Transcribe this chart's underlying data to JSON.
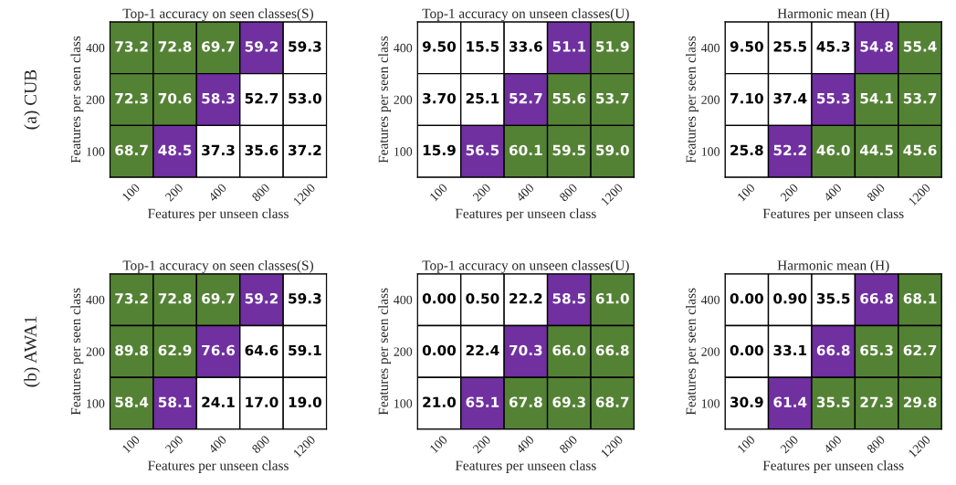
{
  "chart_data": [
    {
      "type": "heatmap",
      "data_labels": true,
      "title": "Top-1 accuracy on seen classes(S)",
      "xlabel": "Features per unseen class",
      "ylabel": "Features per seen class",
      "annotations": [
        "(a) CUB"
      ],
      "categories": [
        "100",
        "200",
        "400",
        "800",
        "1200"
      ],
      "y_categories": [
        "400",
        "200",
        "100"
      ],
      "cells": [
        [
          73.2,
          72.8,
          69.7,
          59.2,
          59.3
        ],
        [
          72.3,
          70.6,
          58.3,
          52.7,
          53.0
        ],
        [
          68.7,
          48.5,
          37.3,
          35.6,
          37.2
        ]
      ],
      "cell_labels": [
        [
          "73.2",
          "72.8",
          "69.7",
          "59.2",
          "59.3"
        ],
        [
          "72.3",
          "70.6",
          "58.3",
          "52.7",
          "53.0"
        ],
        [
          "68.7",
          "48.5",
          "37.3",
          "35.6",
          "37.2"
        ]
      ],
      "colors": [
        [
          "#548235",
          "#548235",
          "#548235",
          "#7030a0",
          "#ffffff"
        ],
        [
          "#548235",
          "#548235",
          "#7030a0",
          "#ffffff",
          "#ffffff"
        ],
        [
          "#548235",
          "#7030a0",
          "#ffffff",
          "#ffffff",
          "#ffffff"
        ]
      ]
    },
    {
      "type": "heatmap",
      "data_labels": true,
      "title": "Top-1 accuracy on unseen classes(U)",
      "xlabel": "Features per unseen class",
      "ylabel": "Features per seen class",
      "categories": [
        "100",
        "200",
        "400",
        "800",
        "1200"
      ],
      "y_categories": [
        "400",
        "200",
        "100"
      ],
      "cells": [
        [
          9.5,
          15.5,
          33.6,
          51.1,
          51.9
        ],
        [
          3.7,
          25.1,
          52.7,
          55.6,
          53.7
        ],
        [
          15.9,
          56.5,
          60.1,
          59.5,
          59.0
        ]
      ],
      "cell_labels": [
        [
          "9.50",
          "15.5",
          "33.6",
          "51.1",
          "51.9"
        ],
        [
          "3.70",
          "25.1",
          "52.7",
          "55.6",
          "53.7"
        ],
        [
          "15.9",
          "56.5",
          "60.1",
          "59.5",
          "59.0"
        ]
      ],
      "colors": [
        [
          "#ffffff",
          "#ffffff",
          "#ffffff",
          "#7030a0",
          "#548235"
        ],
        [
          "#ffffff",
          "#ffffff",
          "#7030a0",
          "#548235",
          "#548235"
        ],
        [
          "#ffffff",
          "#7030a0",
          "#548235",
          "#548235",
          "#548235"
        ]
      ]
    },
    {
      "type": "heatmap",
      "data_labels": true,
      "title": "Harmonic mean (H)",
      "xlabel": "Features per unseen class",
      "ylabel": "Features per seen class",
      "categories": [
        "100",
        "200",
        "400",
        "800",
        "1200"
      ],
      "y_categories": [
        "400",
        "200",
        "100"
      ],
      "cells": [
        [
          9.5,
          25.5,
          45.3,
          54.8,
          55.4
        ],
        [
          7.1,
          37.4,
          55.3,
          54.1,
          53.7
        ],
        [
          25.8,
          52.2,
          46.0,
          44.5,
          45.6
        ]
      ],
      "cell_labels": [
        [
          "9.50",
          "25.5",
          "45.3",
          "54.8",
          "55.4"
        ],
        [
          "7.10",
          "37.4",
          "55.3",
          "54.1",
          "53.7"
        ],
        [
          "25.8",
          "52.2",
          "46.0",
          "44.5",
          "45.6"
        ]
      ],
      "colors": [
        [
          "#ffffff",
          "#ffffff",
          "#ffffff",
          "#7030a0",
          "#548235"
        ],
        [
          "#ffffff",
          "#ffffff",
          "#7030a0",
          "#548235",
          "#548235"
        ],
        [
          "#ffffff",
          "#7030a0",
          "#548235",
          "#548235",
          "#548235"
        ]
      ]
    },
    {
      "type": "heatmap",
      "data_labels": true,
      "title": "Top-1 accuracy on seen classes(S)",
      "xlabel": "Features per unseen class",
      "ylabel": "Features per seen class",
      "annotations": [
        "(b) AWA1"
      ],
      "categories": [
        "100",
        "200",
        "400",
        "800",
        "1200"
      ],
      "y_categories": [
        "400",
        "200",
        "100"
      ],
      "cells": [
        [
          73.2,
          72.8,
          69.7,
          59.2,
          59.3
        ],
        [
          89.8,
          62.9,
          76.6,
          64.6,
          59.1
        ],
        [
          58.4,
          58.1,
          24.1,
          17.0,
          19.0
        ]
      ],
      "cell_labels": [
        [
          "73.2",
          "72.8",
          "69.7",
          "59.2",
          "59.3"
        ],
        [
          "89.8",
          "62.9",
          "76.6",
          "64.6",
          "59.1"
        ],
        [
          "58.4",
          "58.1",
          "24.1",
          "17.0",
          "19.0"
        ]
      ],
      "colors": [
        [
          "#548235",
          "#548235",
          "#548235",
          "#7030a0",
          "#ffffff"
        ],
        [
          "#548235",
          "#548235",
          "#7030a0",
          "#ffffff",
          "#ffffff"
        ],
        [
          "#548235",
          "#7030a0",
          "#ffffff",
          "#ffffff",
          "#ffffff"
        ]
      ]
    },
    {
      "type": "heatmap",
      "data_labels": true,
      "title": "Top-1 accuracy on unseen classes(U)",
      "xlabel": "Features per unseen class",
      "ylabel": "Features per seen class",
      "categories": [
        "100",
        "200",
        "400",
        "800",
        "1200"
      ],
      "y_categories": [
        "400",
        "200",
        "100"
      ],
      "cells": [
        [
          0.0,
          0.5,
          22.2,
          58.5,
          61.0
        ],
        [
          0.0,
          22.4,
          70.3,
          66.0,
          66.8
        ],
        [
          21.0,
          65.1,
          67.8,
          69.3,
          68.7
        ]
      ],
      "cell_labels": [
        [
          "0.00",
          "0.50",
          "22.2",
          "58.5",
          "61.0"
        ],
        [
          "0.00",
          "22.4",
          "70.3",
          "66.0",
          "66.8"
        ],
        [
          "21.0",
          "65.1",
          "67.8",
          "69.3",
          "68.7"
        ]
      ],
      "colors": [
        [
          "#ffffff",
          "#ffffff",
          "#ffffff",
          "#7030a0",
          "#548235"
        ],
        [
          "#ffffff",
          "#ffffff",
          "#7030a0",
          "#548235",
          "#548235"
        ],
        [
          "#ffffff",
          "#7030a0",
          "#548235",
          "#548235",
          "#548235"
        ]
      ]
    },
    {
      "type": "heatmap",
      "data_labels": true,
      "title": "Harmonic mean (H)",
      "xlabel": "Features per unseen class",
      "ylabel": "Features per seen class",
      "categories": [
        "100",
        "200",
        "400",
        "800",
        "1200"
      ],
      "y_categories": [
        "400",
        "200",
        "100"
      ],
      "cells": [
        [
          0.0,
          0.9,
          35.5,
          66.8,
          68.1
        ],
        [
          0.0,
          33.1,
          66.8,
          65.3,
          62.7
        ],
        [
          30.9,
          61.4,
          35.5,
          27.3,
          29.8
        ]
      ],
      "cell_labels": [
        [
          "0.00",
          "0.90",
          "35.5",
          "66.8",
          "68.1"
        ],
        [
          "0.00",
          "33.1",
          "66.8",
          "65.3",
          "62.7"
        ],
        [
          "30.9",
          "61.4",
          "35.5",
          "27.3",
          "29.8"
        ]
      ],
      "colors": [
        [
          "#ffffff",
          "#ffffff",
          "#ffffff",
          "#7030a0",
          "#548235"
        ],
        [
          "#ffffff",
          "#ffffff",
          "#7030a0",
          "#548235",
          "#548235"
        ],
        [
          "#ffffff",
          "#7030a0",
          "#548235",
          "#548235",
          "#548235"
        ]
      ]
    }
  ]
}
